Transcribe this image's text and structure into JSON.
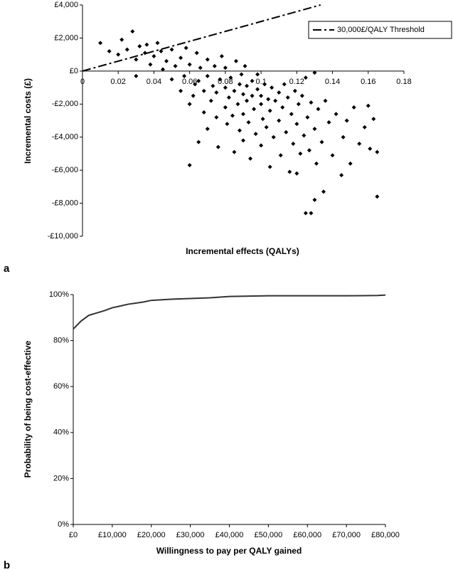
{
  "chart_data": [
    {
      "type": "scatter",
      "panel_label": "a",
      "x_label": "Incremental effects (QALYs)",
      "y_label": "Incremental costs (£)",
      "xlim": [
        0,
        0.18
      ],
      "ylim": [
        -10000,
        4000
      ],
      "xticks": [
        0,
        0.02,
        0.04,
        0.06,
        0.08,
        0.1,
        0.12,
        0.14,
        0.16,
        0.18
      ],
      "yticks": [
        {
          "value": -10000,
          "label": "-£10,000"
        },
        {
          "value": -8000,
          "label": "-£8,000"
        },
        {
          "value": -6000,
          "label": "-£6,000"
        },
        {
          "value": -4000,
          "label": "-£4,000"
        },
        {
          "value": -2000,
          "label": "-£2,000"
        },
        {
          "value": 0,
          "label": "£0"
        },
        {
          "value": 2000,
          "label": "£2,000"
        },
        {
          "value": 4000,
          "label": "£4,000"
        }
      ],
      "series": [
        {
          "type": "scatter",
          "color": "#000000",
          "x": [
            0.01,
            0.015,
            0.02,
            0.022,
            0.025,
            0.028,
            0.03,
            0.03,
            0.032,
            0.035,
            0.036,
            0.038,
            0.04,
            0.042,
            0.044,
            0.045,
            0.047,
            0.05,
            0.05,
            0.052,
            0.055,
            0.055,
            0.057,
            0.058,
            0.06,
            0.06,
            0.06,
            0.062,
            0.063,
            0.064,
            0.065,
            0.065,
            0.066,
            0.068,
            0.068,
            0.07,
            0.07,
            0.07,
            0.072,
            0.073,
            0.074,
            0.075,
            0.075,
            0.076,
            0.077,
            0.078,
            0.08,
            0.08,
            0.08,
            0.081,
            0.082,
            0.083,
            0.084,
            0.085,
            0.085,
            0.086,
            0.087,
            0.088,
            0.088,
            0.089,
            0.09,
            0.09,
            0.09,
            0.091,
            0.092,
            0.092,
            0.093,
            0.094,
            0.095,
            0.095,
            0.096,
            0.097,
            0.098,
            0.098,
            0.1,
            0.1,
            0.1,
            0.101,
            0.102,
            0.103,
            0.104,
            0.105,
            0.105,
            0.106,
            0.107,
            0.108,
            0.11,
            0.11,
            0.111,
            0.112,
            0.113,
            0.114,
            0.115,
            0.116,
            0.117,
            0.118,
            0.119,
            0.12,
            0.12,
            0.121,
            0.122,
            0.123,
            0.124,
            0.125,
            0.126,
            0.127,
            0.128,
            0.128,
            0.13,
            0.13,
            0.131,
            0.132,
            0.134,
            0.135,
            0.136,
            0.138,
            0.14,
            0.142,
            0.145,
            0.146,
            0.148,
            0.15,
            0.152,
            0.155,
            0.158,
            0.16,
            0.161,
            0.163,
            0.165,
            0.165,
            0.125,
            0.13
          ],
          "values": [
            1700,
            1200,
            1000,
            1900,
            1300,
            2400,
            700,
            -300,
            1500,
            1100,
            1600,
            400,
            900,
            1700,
            1200,
            100,
            600,
            -500,
            1300,
            300,
            -1200,
            800,
            -300,
            1400,
            -5700,
            -2000,
            400,
            -1500,
            -800,
            1100,
            -4300,
            -600,
            200,
            -2500,
            -1200,
            -3500,
            -300,
            700,
            -1800,
            -900,
            300,
            -2800,
            -1300,
            -4600,
            -500,
            900,
            -2200,
            -1000,
            200,
            -3200,
            -1600,
            -400,
            -2700,
            -4900,
            -1200,
            600,
            -2000,
            -3600,
            -800,
            -200,
            -1400,
            -2600,
            -4200,
            300,
            -1800,
            -900,
            -3100,
            -5300,
            -1500,
            -600,
            -2300,
            -3800,
            -1100,
            -200,
            -2000,
            -4500,
            -1500,
            -2900,
            -800,
            -3400,
            -1700,
            -5800,
            -2400,
            -1000,
            -4000,
            -1800,
            -3000,
            -1300,
            -5100,
            -2200,
            -800,
            -3700,
            -1600,
            -6100,
            -2600,
            -4400,
            -1200,
            -3200,
            -6200,
            -2000,
            -5000,
            -1500,
            -3900,
            -8600,
            -2800,
            -4800,
            -8600,
            -1900,
            -7800,
            -3500,
            -5600,
            -2300,
            -4300,
            -7300,
            -1800,
            -3100,
            -5100,
            -2600,
            -6300,
            -4000,
            -3000,
            -5600,
            -2200,
            -4400,
            -3400,
            -2100,
            -4700,
            -2900,
            -4900,
            -7600,
            -400,
            -100
          ]
        },
        {
          "type": "line",
          "name": "30,000£/QALY Threshold",
          "color": "#000000",
          "x": [
            0,
            0.1333
          ],
          "values": [
            0,
            4000
          ]
        }
      ]
    },
    {
      "type": "line",
      "panel_label": "b",
      "x_label": "Willingness to pay per QALY gained",
      "y_label": "Probability of being cost-effective",
      "xlim": [
        0,
        80000
      ],
      "ylim": [
        0,
        100
      ],
      "xticks": [
        {
          "value": 0,
          "label": "£0"
        },
        {
          "value": 10000,
          "label": "£10,000"
        },
        {
          "value": 20000,
          "label": "£20,000"
        },
        {
          "value": 30000,
          "label": "£30,000"
        },
        {
          "value": 40000,
          "label": "£40,000"
        },
        {
          "value": 50000,
          "label": "£50,000"
        },
        {
          "value": 60000,
          "label": "£60,000"
        },
        {
          "value": 70000,
          "label": "£70,000"
        },
        {
          "value": 80000,
          "label": "£80,000"
        }
      ],
      "yticks": [
        {
          "value": 0,
          "label": "0%"
        },
        {
          "value": 20,
          "label": "20%"
        },
        {
          "value": 40,
          "label": "40%"
        },
        {
          "value": 60,
          "label": "60%"
        },
        {
          "value": 80,
          "label": "80%"
        },
        {
          "value": 100,
          "label": "100%"
        }
      ],
      "series": [
        {
          "type": "line",
          "color": "#333333",
          "x": [
            0,
            2000,
            4000,
            6000,
            8000,
            10000,
            12000,
            14000,
            16000,
            18000,
            20000,
            25000,
            30000,
            35000,
            40000,
            50000,
            60000,
            70000,
            78000,
            80000
          ],
          "values": [
            85,
            88.5,
            91,
            92,
            93,
            94.3,
            95,
            95.8,
            96.3,
            96.8,
            97.5,
            98,
            98.3,
            98.6,
            99.2,
            99.5,
            99.5,
            99.5,
            99.6,
            99.8
          ]
        }
      ]
    }
  ]
}
